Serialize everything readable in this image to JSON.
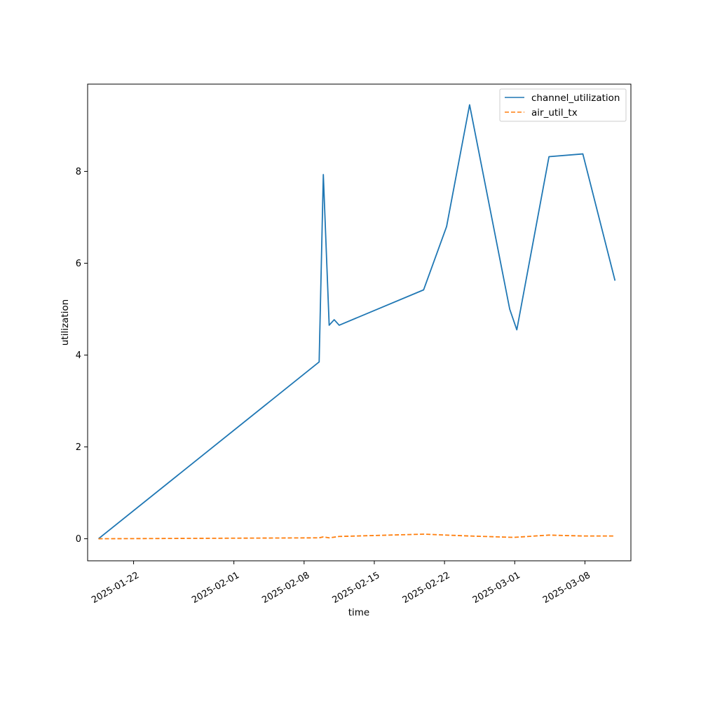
{
  "chart_data": {
    "type": "line",
    "title": "",
    "xlabel": "time",
    "ylabel": "utilization",
    "x_is_date": true,
    "xlim": [
      "2025-01-17T10:00",
      "2025-03-12T14:00"
    ],
    "ylim": [
      -0.48,
      9.9
    ],
    "x_ticks": [
      "2025-01-22",
      "2025-02-01",
      "2025-02-08",
      "2025-02-15",
      "2025-02-22",
      "2025-03-01",
      "2025-03-08"
    ],
    "y_ticks": [
      0,
      2,
      4,
      6,
      8
    ],
    "legend_position": "top-right",
    "series": [
      {
        "name": "channel_utilization",
        "color": "#1f77b4",
        "dash": "solid",
        "points": [
          [
            "2025-01-18T12:00",
            0.0
          ],
          [
            "2025-02-09T12:00",
            3.85
          ],
          [
            "2025-02-09T22:00",
            7.93
          ],
          [
            "2025-02-10T12:00",
            4.65
          ],
          [
            "2025-02-11T00:00",
            4.77
          ],
          [
            "2025-02-11T12:00",
            4.65
          ],
          [
            "2025-02-19T22:00",
            5.42
          ],
          [
            "2025-02-22T05:00",
            6.8
          ],
          [
            "2025-02-24T12:00",
            9.45
          ],
          [
            "2025-02-28T12:00",
            5.0
          ],
          [
            "2025-02-29T05:00",
            4.55
          ],
          [
            "2025-03-04T10:00",
            8.32
          ],
          [
            "2025-03-07T19:00",
            8.38
          ],
          [
            "2025-03-11T00:00",
            5.62
          ]
        ]
      },
      {
        "name": "air_util_tx",
        "color": "#ff7f0e",
        "dash": "dashed",
        "points": [
          [
            "2025-01-18T12:00",
            0.0
          ],
          [
            "2025-02-09T12:00",
            0.02
          ],
          [
            "2025-02-09T22:00",
            0.04
          ],
          [
            "2025-02-10T12:00",
            0.02
          ],
          [
            "2025-02-11T12:00",
            0.05
          ],
          [
            "2025-02-19T22:00",
            0.1
          ],
          [
            "2025-02-24T12:00",
            0.06
          ],
          [
            "2025-02-28T22:00",
            0.03
          ],
          [
            "2025-03-04T10:00",
            0.08
          ],
          [
            "2025-03-07T19:00",
            0.06
          ],
          [
            "2025-03-11T00:00",
            0.06
          ]
        ]
      }
    ]
  }
}
